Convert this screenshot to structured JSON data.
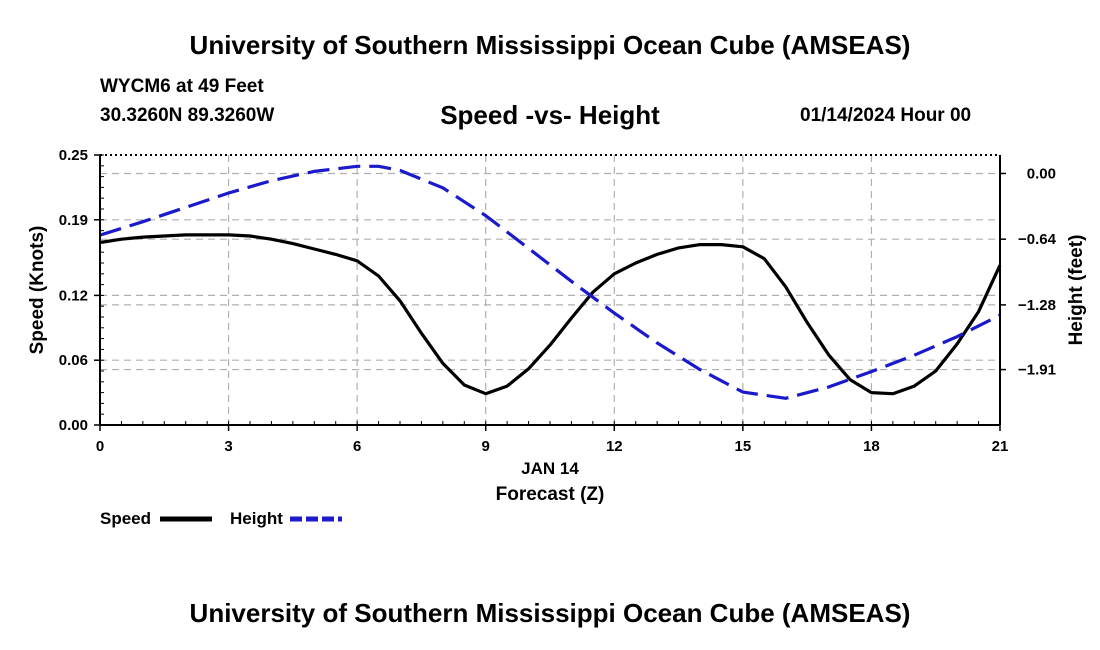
{
  "page": {
    "title": "University of Southern Mississippi Ocean Cube (AMSEAS)",
    "footer_title": "University of Southern Mississippi Ocean Cube (AMSEAS)",
    "station": "WYCM6 at 49 Feet",
    "coordinates": "30.3260N  89.3260W",
    "subtitle": "Speed -vs- Height",
    "datetime": "01/14/2024 Hour 00"
  },
  "colors": {
    "speed": "#000000",
    "height": "#1a1acc",
    "grid": "#b0b0b0"
  },
  "chart_data": {
    "type": "line",
    "title": "Speed -vs- Height",
    "xlabel_date": "JAN 14",
    "xlabel": "Forecast (Z)",
    "ylabel_left": "Speed (Knots)",
    "ylabel_right": "Height (feet)",
    "xlim": [
      0,
      21
    ],
    "ylim_left": [
      0,
      0.25
    ],
    "ylim_right": [
      -2.45,
      0.18
    ],
    "x_ticks": [
      0,
      3,
      6,
      9,
      12,
      15,
      18,
      21
    ],
    "x_tick_labels": [
      "0",
      "3",
      "6",
      "9",
      "12",
      "15",
      "18",
      "21"
    ],
    "y_left_ticks": [
      0.0,
      0.06,
      0.12,
      0.19,
      0.25
    ],
    "y_left_tick_labels": [
      "0.00",
      "0.06",
      "0.12",
      "0.19",
      "0.25"
    ],
    "y_right_ticks": [
      0.0,
      -0.64,
      -1.28,
      -1.91
    ],
    "y_right_tick_labels": [
      "0.00",
      "−0.64",
      "−1.28",
      "−1.91"
    ],
    "grid": true,
    "legend": {
      "speed_label": "Speed",
      "height_label": "Height",
      "placement": "bottom-left"
    },
    "series": [
      {
        "name": "Speed",
        "axis": "left",
        "style": "solid",
        "x": [
          0,
          0.5,
          1,
          1.5,
          2,
          2.5,
          3,
          3.5,
          4,
          4.5,
          5,
          5.5,
          6,
          6.5,
          7,
          7.5,
          8,
          8.5,
          9,
          9.5,
          10,
          10.5,
          11,
          11.5,
          12,
          12.5,
          13,
          13.5,
          14,
          14.5,
          15,
          15.5,
          16,
          16.5,
          17,
          17.5,
          18,
          18.5,
          19,
          19.5,
          20,
          20.5,
          21
        ],
        "values": [
          0.169,
          0.172,
          0.174,
          0.175,
          0.176,
          0.176,
          0.176,
          0.175,
          0.172,
          0.168,
          0.163,
          0.158,
          0.152,
          0.138,
          0.115,
          0.085,
          0.057,
          0.037,
          0.029,
          0.036,
          0.052,
          0.074,
          0.099,
          0.123,
          0.14,
          0.15,
          0.158,
          0.164,
          0.167,
          0.167,
          0.165,
          0.154,
          0.128,
          0.095,
          0.065,
          0.042,
          0.03,
          0.029,
          0.036,
          0.05,
          0.075,
          0.105,
          0.148
        ]
      },
      {
        "name": "Height",
        "axis": "right",
        "style": "dashed",
        "x": [
          0,
          1,
          2,
          3,
          4,
          5,
          6,
          6.5,
          7,
          8,
          9,
          10,
          11,
          12,
          13,
          14,
          15,
          16,
          17,
          18,
          19,
          20,
          21
        ],
        "values": [
          -0.6,
          -0.47,
          -0.33,
          -0.19,
          -0.07,
          0.02,
          0.07,
          0.07,
          0.03,
          -0.14,
          -0.41,
          -0.73,
          -1.05,
          -1.36,
          -1.65,
          -1.91,
          -2.13,
          -2.19,
          -2.08,
          -1.93,
          -1.77,
          -1.59,
          -1.38
        ]
      }
    ]
  }
}
